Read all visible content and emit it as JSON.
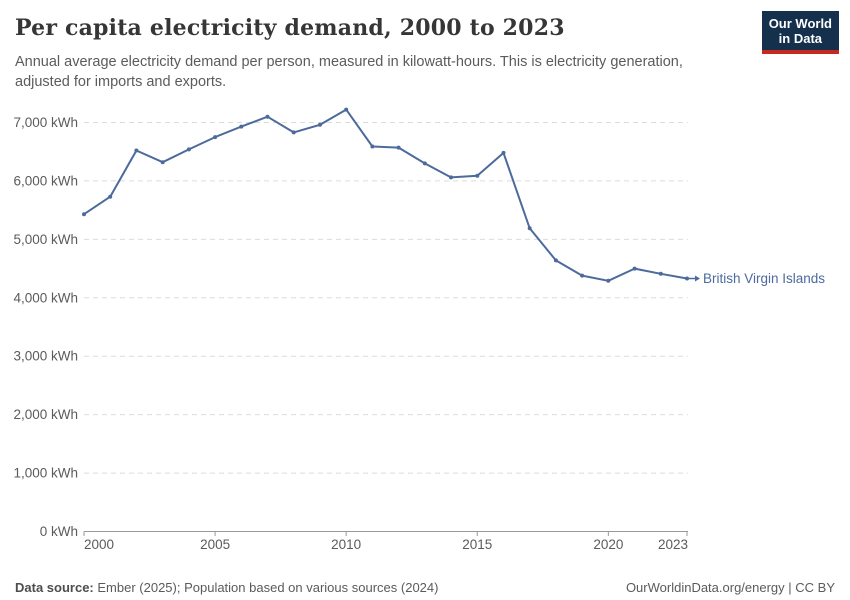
{
  "header": {
    "title": "Per capita electricity demand, 2000 to 2023",
    "subtitle_line1": "Annual average electricity demand per person, measured in kilowatt-hours. This is electricity generation,",
    "subtitle_line2": "adjusted for imports and exports.",
    "logo": {
      "line1": "Our World",
      "line2": "in Data",
      "bg_color": "#14304D",
      "accent_color": "#C7281F"
    }
  },
  "chart_data": {
    "type": "line",
    "title": "Per capita electricity demand, 2000 to 2023",
    "entity": "British Virgin Islands",
    "unit": "kWh",
    "color": "#4C6A9C",
    "grid": "dashed-horizontal",
    "legend": "end-of-line-label",
    "x": [
      2000,
      2001,
      2002,
      2003,
      2004,
      2005,
      2006,
      2007,
      2008,
      2009,
      2010,
      2011,
      2012,
      2013,
      2014,
      2015,
      2016,
      2017,
      2018,
      2019,
      2020,
      2021,
      2022,
      2023
    ],
    "y": [
      5430,
      5730,
      6520,
      6320,
      6540,
      6750,
      6930,
      7100,
      6830,
      6960,
      7220,
      6590,
      6570,
      6300,
      6060,
      6090,
      6480,
      5190,
      4640,
      4380,
      4290,
      4500,
      4410,
      4330
    ],
    "ylim": [
      0,
      7000
    ],
    "yticks": [
      0,
      1000,
      2000,
      3000,
      4000,
      5000,
      6000,
      7000
    ],
    "xticks": [
      2000,
      2005,
      2010,
      2015,
      2020,
      2023
    ],
    "grid_color": "#dcdcdc",
    "axis_color": "#999999",
    "tick_label_color": "#5b5b5b"
  },
  "footer": {
    "source_label": "Data source:",
    "source_text": "Ember (2025); Population based on various sources (2024)",
    "license": "OurWorldinData.org/energy | CC BY"
  }
}
